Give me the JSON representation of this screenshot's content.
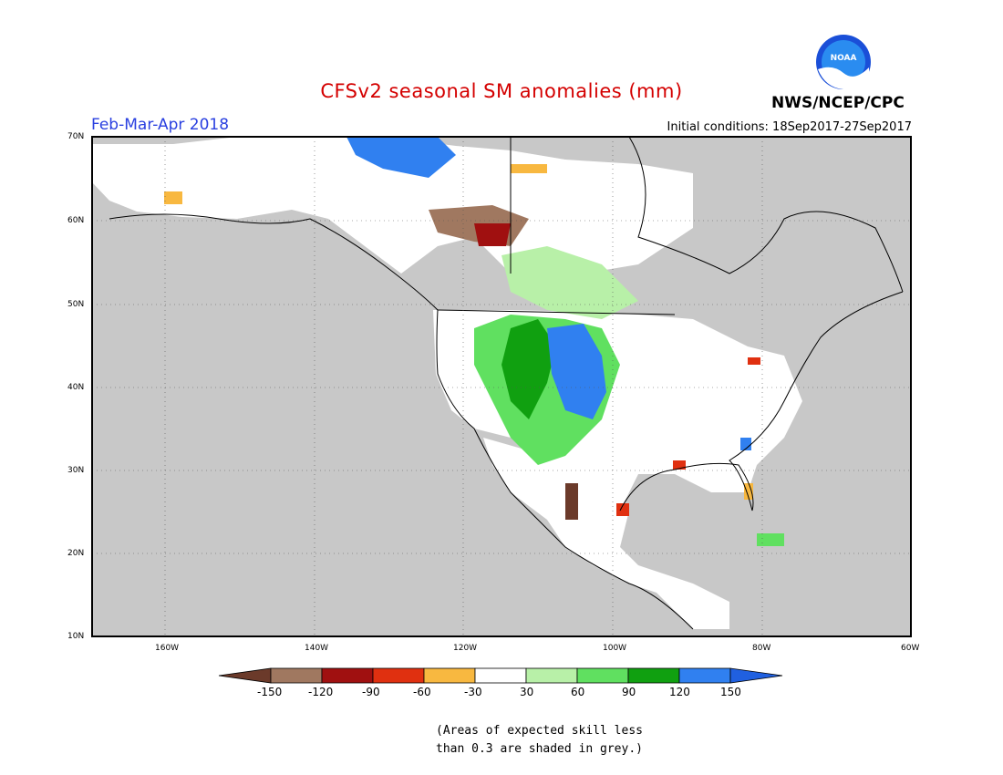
{
  "header": {
    "title": "CFSv2 seasonal SM anomalies (mm)",
    "period": "Feb-Mar-Apr 2018",
    "initial_conditions": "Initial conditions: 18Sep2017-27Sep2017",
    "agency": "NWS/NCEP/CPC",
    "logo_text": "NOAA"
  },
  "map": {
    "lat_labels": [
      "70N",
      "60N",
      "50N",
      "40N",
      "30N",
      "20N",
      "10N"
    ],
    "lon_labels": [
      "160W",
      "140W",
      "120W",
      "100W",
      "80W",
      "60W"
    ],
    "skill_mask_color": "#c8c8c8"
  },
  "colorbar": {
    "ticks": [
      "-150",
      "-120",
      "-90",
      "-60",
      "-30",
      "30",
      "60",
      "90",
      "120",
      "150"
    ],
    "colors": [
      "#6b3a2a",
      "#a07860",
      "#a01010",
      "#e03010",
      "#f8b840",
      "#ffffff",
      "#b8f0a8",
      "#60e060",
      "#10a010",
      "#3080f0",
      "#2060e0"
    ]
  },
  "note": {
    "line1": "(Areas of expected skill less",
    "line2": "than 0.3 are shaded in grey.)"
  }
}
